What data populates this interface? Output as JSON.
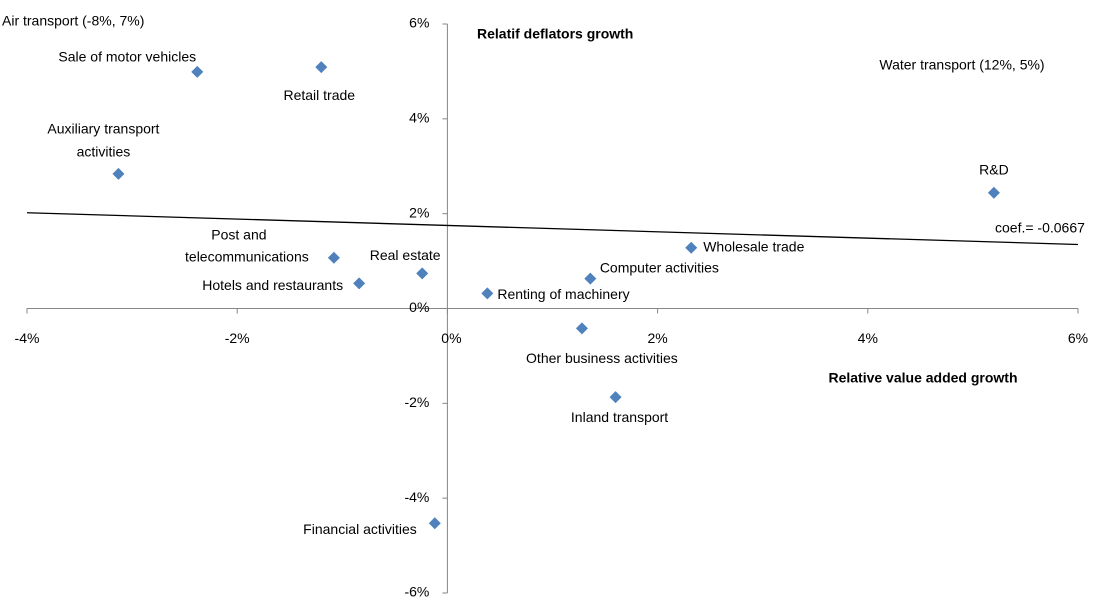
{
  "chart_data": {
    "type": "scatter",
    "x_axis_title": "Relative value added growth",
    "y_axis_title": "Relatif deflators growth",
    "x": [
      -2.38,
      -1.2,
      -3.13,
      5.2,
      2.32,
      -1.08,
      -0.24,
      1.36,
      -0.84,
      0.38,
      1.28,
      1.6,
      -0.12
    ],
    "y": [
      4.99,
      5.09,
      2.84,
      2.44,
      1.28,
      1.07,
      0.74,
      0.63,
      0.53,
      0.32,
      -0.42,
      -1.87,
      -4.53
    ],
    "labels": [
      [
        "Sale of motor vehicles"
      ],
      [
        "Retail trade"
      ],
      [
        "Auxiliary transport",
        "activities"
      ],
      [
        "R&D"
      ],
      [
        "Wholesale trade"
      ],
      [
        "Post and",
        "telecommunications"
      ],
      [
        "Real estate"
      ],
      [
        "Computer activities"
      ],
      [
        "Hotels and restaurants"
      ],
      [
        "Renting of machinery"
      ],
      [
        "Other business activities"
      ],
      [
        "Inland transport"
      ],
      [
        "Financial activities"
      ]
    ],
    "color": "#4f81bd",
    "trendline": {
      "x": [
        -4,
        6
      ],
      "y": [
        2.02,
        1.35
      ],
      "color": "#000000",
      "label": "coef.= -0.0667"
    },
    "annotations": [
      "Air transport (-8%, 7%)",
      "Water transport (12%, 5%)"
    ],
    "xlim": [
      -4,
      6
    ],
    "ylim": [
      -6,
      6
    ],
    "xticks": [
      {
        "value": -4,
        "label": "-4%"
      },
      {
        "value": -2,
        "label": "-2%"
      },
      {
        "value": 0,
        "label": "0%"
      },
      {
        "value": 2,
        "label": "2%"
      },
      {
        "value": 4,
        "label": "4%"
      },
      {
        "value": 6,
        "label": "6%"
      }
    ],
    "yticks": [
      {
        "value": -6,
        "label": "-6%"
      },
      {
        "value": -4,
        "label": "-4%"
      },
      {
        "value": -2,
        "label": "-2%"
      },
      {
        "value": 0,
        "label": "0%"
      },
      {
        "value": 2,
        "label": "2%"
      },
      {
        "value": 4,
        "label": "4%"
      },
      {
        "value": 6,
        "label": "6%"
      }
    ]
  }
}
